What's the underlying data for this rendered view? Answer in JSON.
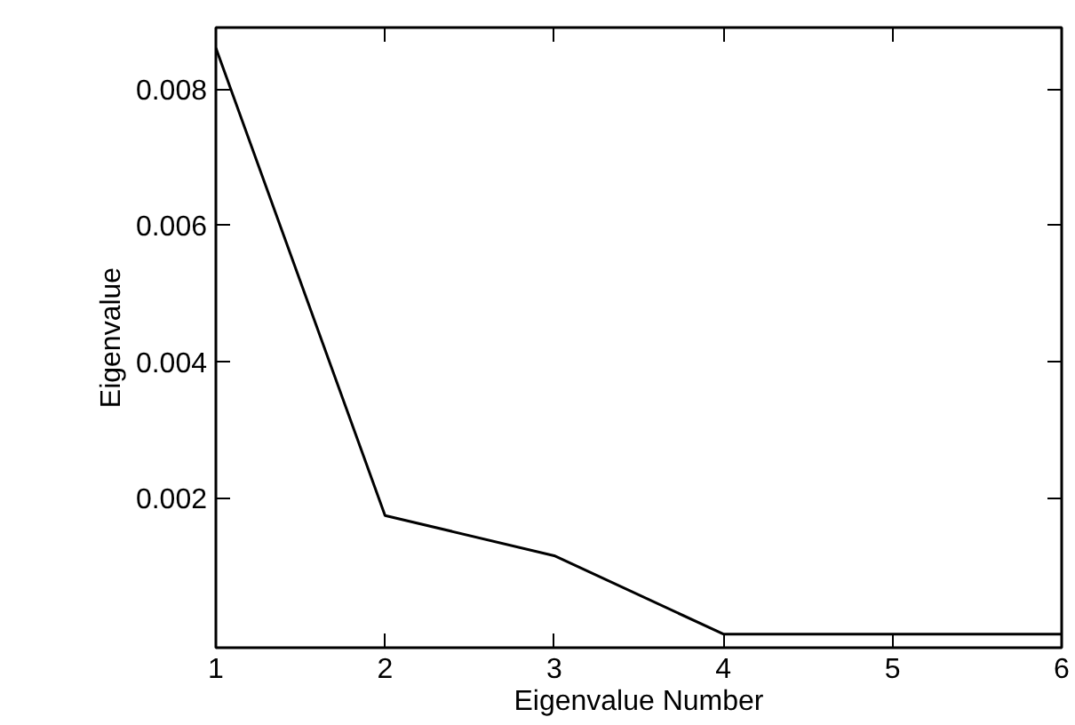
{
  "chart_data": {
    "type": "line",
    "xlabel": "Eigenvalue Number",
    "ylabel": "Eigenvalue",
    "x": [
      1,
      2,
      3,
      4,
      5,
      6
    ],
    "series": [
      {
        "color": "#000000",
        "values": [
          0.0086,
          0.00174,
          0.00115,
          0.0,
          0.0,
          0.0
        ]
      }
    ],
    "xlim": [
      1,
      6
    ],
    "xticks": [
      1,
      2,
      3,
      4,
      5,
      6
    ],
    "ylim": [
      -0.0002,
      0.0089
    ],
    "yticks": [
      0.002,
      0.004,
      0.006,
      0.008
    ],
    "grid": false,
    "marker": "none",
    "line_style": "solid"
  }
}
